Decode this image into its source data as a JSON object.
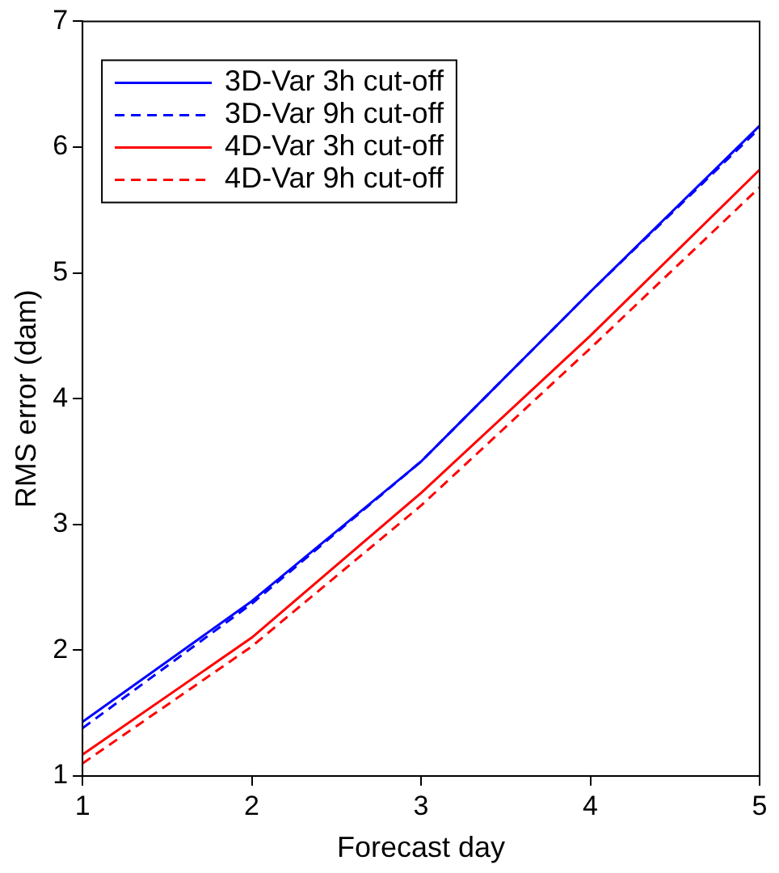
{
  "chart_data": {
    "type": "line",
    "xlabel": "Forecast day",
    "ylabel": "RMS error (dam)",
    "x": [
      1,
      2,
      3,
      4,
      5
    ],
    "xlim": [
      1,
      5
    ],
    "xticks": [
      1,
      2,
      3,
      4,
      5
    ],
    "ylim": [
      1,
      7
    ],
    "yticks": [
      1,
      2,
      3,
      4,
      5,
      6,
      7
    ],
    "grid": false,
    "legend": "top left",
    "marker": "none",
    "series": [
      {
        "name": "3D-Var 3h cut-off",
        "color": "#0000ff",
        "line_style": "solid",
        "values": [
          1.43,
          2.39,
          3.5,
          4.85,
          6.17
        ]
      },
      {
        "name": "3D-Var 9h cut-off",
        "color": "#0000ff",
        "line_style": "dashed",
        "values": [
          1.38,
          2.37,
          3.5,
          4.85,
          6.15
        ]
      },
      {
        "name": "4D-Var 3h cut-off",
        "color": "#ff0000",
        "line_style": "solid",
        "values": [
          1.17,
          2.1,
          3.25,
          4.5,
          5.82
        ]
      },
      {
        "name": "4D-Var 9h cut-off",
        "color": "#ff0000",
        "line_style": "dashed",
        "values": [
          1.1,
          2.03,
          3.15,
          4.4,
          5.68
        ]
      }
    ]
  }
}
